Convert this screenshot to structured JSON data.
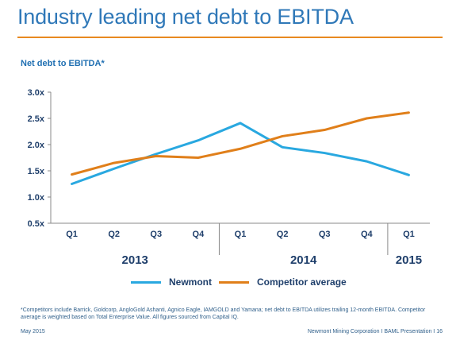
{
  "slide": {
    "title": "Industry leading net debt to EBITDA",
    "footnote": "*Competitors include Barrick, Goldcorp, AngloGold Ashanti, Agnico Eagle, IAMGOLD and Yamana; net debt to EBITDA utilizes trailing 12-month EBITDA. Competitor average is weighted based on Total Enterprise Value. All figures sourced from Capital IQ.",
    "footer_date": "May 2015",
    "footer_right": "Newmont Mining Corporation  I  BAML Presentation  I  16"
  },
  "colors": {
    "title": "#2f78b8",
    "rule": "#e8891f",
    "newmont": "#29a8e0",
    "competitor": "#e07f1a",
    "axis_text": "#1f3f6b"
  },
  "chart_data": {
    "type": "line",
    "title": "Net debt to EBITDA*",
    "categories": [
      "Q1",
      "Q2",
      "Q3",
      "Q4",
      "Q1",
      "Q2",
      "Q3",
      "Q4",
      "Q1"
    ],
    "year_groups": [
      {
        "label": "2013",
        "start": 0,
        "end": 3
      },
      {
        "label": "2014",
        "start": 4,
        "end": 7
      },
      {
        "label": "2015",
        "start": 8,
        "end": 8
      }
    ],
    "series": [
      {
        "name": "Newmont",
        "values": [
          1.25,
          1.54,
          1.82,
          2.08,
          2.41,
          1.95,
          1.84,
          1.68,
          1.42
        ]
      },
      {
        "name": "Competitor average",
        "values": [
          1.43,
          1.65,
          1.78,
          1.75,
          1.92,
          2.16,
          2.28,
          2.5,
          2.61
        ]
      }
    ],
    "ylim": [
      0.5,
      3.0
    ],
    "yticks": [
      0.5,
      1.0,
      1.5,
      2.0,
      2.5,
      3.0
    ],
    "ytick_labels": [
      "0.5x",
      "1.0x",
      "1.5x",
      "2.0x",
      "2.5x",
      "3.0x"
    ],
    "grid": false,
    "legend_position": "bottom"
  }
}
